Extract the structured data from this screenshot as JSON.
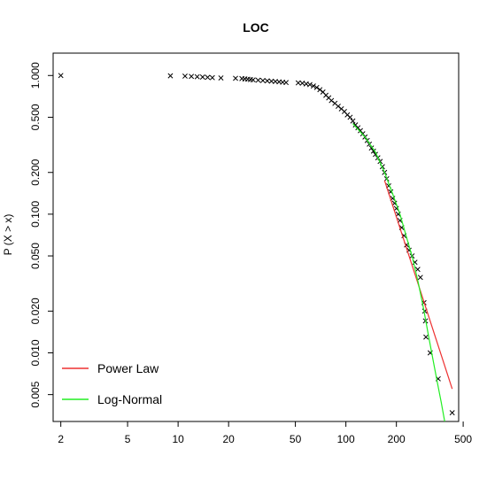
{
  "chart_data": {
    "type": "scatter",
    "title": "LOC",
    "xlabel": "",
    "ylabel": "P (X > x)",
    "xscale": "log",
    "yscale": "log",
    "xlim": [
      1.8,
      470
    ],
    "ylim": [
      0.0032,
      1.45
    ],
    "x_ticks": [
      2,
      5,
      10,
      20,
      50,
      100,
      200,
      500
    ],
    "x_tick_labels": [
      "2",
      "5",
      "10",
      "20",
      "50",
      "100",
      "200",
      "500"
    ],
    "y_ticks": [
      0.005,
      0.01,
      0.02,
      0.05,
      0.1,
      0.2,
      0.5,
      1.0
    ],
    "y_tick_labels": [
      "0.005",
      "0.010",
      "0.020",
      "0.050",
      "0.100",
      "0.200",
      "0.500",
      "1.000"
    ],
    "grid": false,
    "legend_position": "bottom-left",
    "series": [
      {
        "type": "scatter",
        "marker": "x",
        "color": "#000000",
        "points": [
          [
            2,
            1.0
          ],
          [
            9,
            0.995
          ],
          [
            11,
            0.99
          ],
          [
            12,
            0.985
          ],
          [
            13,
            0.98
          ],
          [
            14,
            0.975
          ],
          [
            15,
            0.97
          ],
          [
            16,
            0.965
          ],
          [
            18,
            0.96
          ],
          [
            22,
            0.955
          ],
          [
            24,
            0.95
          ],
          [
            25,
            0.945
          ],
          [
            26,
            0.94
          ],
          [
            27,
            0.935
          ],
          [
            28,
            0.93
          ],
          [
            30,
            0.925
          ],
          [
            32,
            0.92
          ],
          [
            34,
            0.915
          ],
          [
            36,
            0.91
          ],
          [
            38,
            0.905
          ],
          [
            40,
            0.9
          ],
          [
            42,
            0.895
          ],
          [
            44,
            0.89
          ],
          [
            52,
            0.885
          ],
          [
            55,
            0.88
          ],
          [
            58,
            0.87
          ],
          [
            61,
            0.86
          ],
          [
            64,
            0.84
          ],
          [
            67,
            0.82
          ],
          [
            70,
            0.79
          ],
          [
            73,
            0.76
          ],
          [
            76,
            0.72
          ],
          [
            79,
            0.69
          ],
          [
            82,
            0.66
          ],
          [
            86,
            0.63
          ],
          [
            90,
            0.6
          ],
          [
            94,
            0.575
          ],
          [
            98,
            0.55
          ],
          [
            102,
            0.52
          ],
          [
            106,
            0.5
          ],
          [
            110,
            0.47
          ],
          [
            114,
            0.44
          ],
          [
            118,
            0.42
          ],
          [
            122,
            0.4
          ],
          [
            126,
            0.38
          ],
          [
            130,
            0.36
          ],
          [
            134,
            0.34
          ],
          [
            138,
            0.32
          ],
          [
            142,
            0.3
          ],
          [
            146,
            0.285
          ],
          [
            150,
            0.27
          ],
          [
            155,
            0.255
          ],
          [
            160,
            0.24
          ],
          [
            165,
            0.22
          ],
          [
            170,
            0.2
          ],
          [
            175,
            0.18
          ],
          [
            180,
            0.16
          ],
          [
            185,
            0.145
          ],
          [
            190,
            0.13
          ],
          [
            195,
            0.12
          ],
          [
            200,
            0.11
          ],
          [
            205,
            0.1
          ],
          [
            210,
            0.09
          ],
          [
            215,
            0.08
          ],
          [
            222,
            0.07
          ],
          [
            230,
            0.06
          ],
          [
            238,
            0.055
          ],
          [
            248,
            0.05
          ],
          [
            258,
            0.045
          ],
          [
            268,
            0.04
          ],
          [
            278,
            0.035
          ],
          [
            292,
            0.023
          ],
          [
            295,
            0.02
          ],
          [
            298,
            0.017
          ],
          [
            300,
            0.013
          ],
          [
            318,
            0.01
          ],
          [
            355,
            0.0065
          ],
          [
            430,
            0.0037
          ]
        ]
      },
      {
        "name": "Power Law",
        "type": "line",
        "color": "#ee3030",
        "points": [
          [
            170,
            0.175
          ],
          [
            430,
            0.0055
          ]
        ]
      },
      {
        "name": "Log-Normal",
        "type": "line",
        "color": "#22ee22",
        "points": [
          [
            110,
            0.45
          ],
          [
            130,
            0.36
          ],
          [
            150,
            0.28
          ],
          [
            170,
            0.2
          ],
          [
            190,
            0.14
          ],
          [
            210,
            0.1
          ],
          [
            230,
            0.068
          ],
          [
            250,
            0.048
          ],
          [
            270,
            0.032
          ],
          [
            290,
            0.021
          ],
          [
            310,
            0.0135
          ],
          [
            330,
            0.009
          ],
          [
            350,
            0.0062
          ],
          [
            370,
            0.0044
          ],
          [
            388,
            0.0032
          ]
        ]
      }
    ],
    "legend": [
      {
        "label": "Power Law",
        "color": "#ee3030"
      },
      {
        "label": "Log-Normal",
        "color": "#22ee22"
      }
    ]
  }
}
